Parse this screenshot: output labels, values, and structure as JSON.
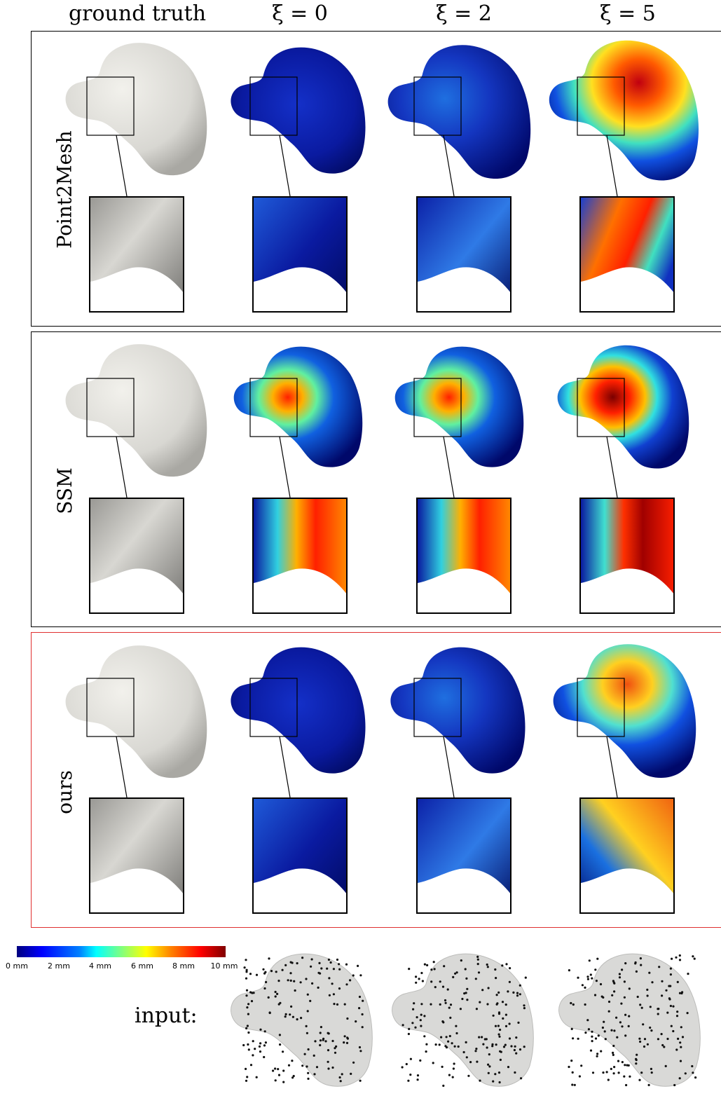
{
  "figure": {
    "columns": [
      {
        "id": "gt",
        "label": "ground truth"
      },
      {
        "id": "xi0",
        "label": "ξ = 0"
      },
      {
        "id": "xi2",
        "label": "ξ = 2"
      },
      {
        "id": "xi5",
        "label": "ξ = 5"
      }
    ],
    "rows": [
      {
        "id": "point2mesh",
        "label": "Point2Mesh",
        "highlight": false
      },
      {
        "id": "ssm",
        "label": "SSM",
        "highlight": false
      },
      {
        "id": "ours",
        "label": "ours",
        "highlight": true,
        "highlight_color": "#e03030"
      }
    ],
    "colorbar": {
      "ticks": [
        "0 mm",
        "2 mm",
        "4 mm",
        "6 mm",
        "8 mm",
        "10 mm"
      ],
      "range_mm": [
        0,
        10
      ],
      "colormap": "jet"
    },
    "input_label": "input:"
  }
}
